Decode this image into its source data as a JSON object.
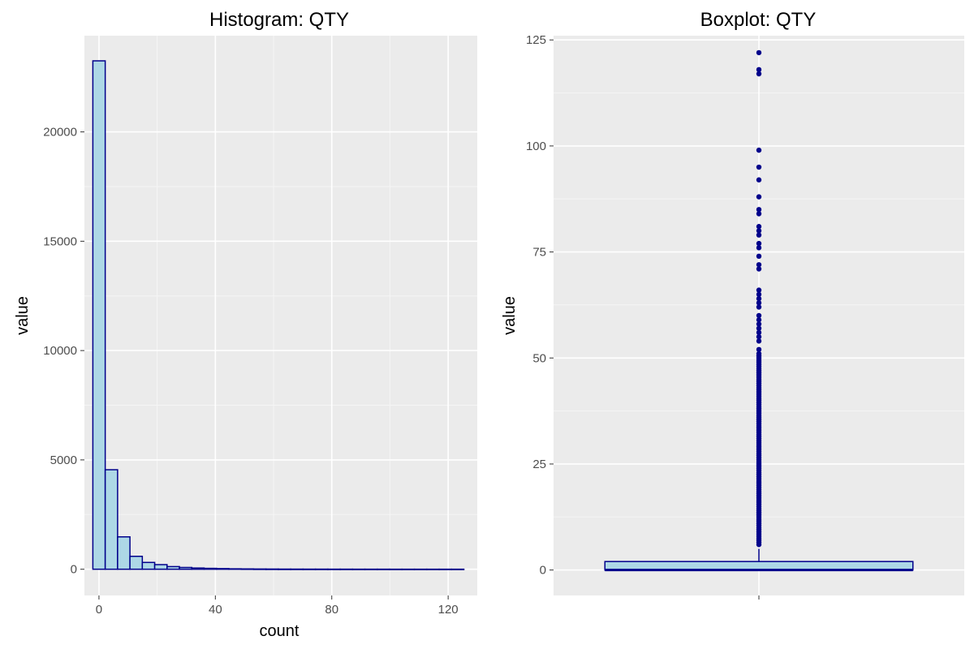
{
  "colors": {
    "panel_background": "#ebebeb",
    "grid_major": "#ffffff",
    "grid_minor": "#f5f5f5",
    "tick_mark": "#333333",
    "fill": "#add8e6",
    "outline": "#00008b",
    "outlier": "#00008b"
  },
  "chart_data": [
    {
      "type": "bar",
      "title": "Histogram: QTY",
      "xlabel": "count",
      "ylabel": "value",
      "orientation": "vertical-bars-histogram",
      "xlim": [
        -5,
        130
      ],
      "ylim": [
        -1200,
        24400
      ],
      "x_ticks": [
        0,
        40,
        80,
        120
      ],
      "x_tick_labels": [
        "0",
        "40",
        "80",
        "120"
      ],
      "y_ticks": [
        0,
        5000,
        10000,
        15000,
        20000
      ],
      "y_tick_labels": [
        "0",
        "5000",
        "10000",
        "15000",
        "20000"
      ],
      "grid": true,
      "bin_width": 4.25,
      "bin_starts": [
        -2.1,
        2.15,
        6.4,
        10.65,
        14.9,
        19.15,
        23.4,
        27.65,
        31.9,
        36.15,
        40.4,
        44.65,
        48.9,
        53.15,
        57.4,
        61.65,
        65.9,
        70.15,
        74.4,
        78.65,
        82.9,
        87.15,
        91.4,
        95.65,
        99.9,
        104.15,
        108.4,
        112.65,
        116.9,
        121.15
      ],
      "values": [
        23250,
        4550,
        1480,
        590,
        310,
        210,
        120,
        80,
        55,
        40,
        28,
        18,
        14,
        10,
        8,
        6,
        5,
        4,
        4,
        3,
        3,
        2,
        2,
        2,
        1,
        1,
        1,
        1,
        1,
        1
      ]
    },
    {
      "type": "boxplot",
      "title": "Boxplot: QTY",
      "xlabel": "",
      "ylabel": "value",
      "ylim": [
        -6,
        126
      ],
      "y_ticks": [
        0,
        25,
        50,
        75,
        100,
        125
      ],
      "y_tick_labels": [
        "0",
        "25",
        "50",
        "75",
        "100",
        "125"
      ],
      "grid": true,
      "box": {
        "min": 0,
        "q1": 0,
        "median": 0,
        "q3": 2,
        "whisker_high": 5
      },
      "outliers": [
        6,
        6.5,
        7,
        7.5,
        8,
        8.5,
        9,
        9.5,
        10,
        10.5,
        11,
        11.5,
        12,
        12.5,
        13,
        13.5,
        14,
        14.5,
        15,
        15.5,
        16,
        16.5,
        17,
        17.5,
        18,
        18.5,
        19,
        19.5,
        20,
        20.5,
        21,
        21.5,
        22,
        22.5,
        23,
        23.5,
        24,
        24.5,
        25,
        25.5,
        26,
        26.5,
        27,
        27.5,
        28,
        28.5,
        29,
        29.5,
        30,
        30.5,
        31,
        31.5,
        32,
        32.5,
        33,
        33.5,
        34,
        34.5,
        35,
        35.5,
        36,
        36.5,
        37,
        37.5,
        38,
        38.5,
        39,
        39.5,
        40,
        40.5,
        41,
        41.5,
        42,
        42.5,
        43,
        43.5,
        44,
        44.5,
        45,
        45.5,
        46,
        46.5,
        47,
        47.5,
        48,
        48.5,
        49,
        49.5,
        50,
        50.5,
        51,
        52,
        54,
        55,
        56,
        57,
        58,
        59,
        60,
        62,
        63,
        64,
        65,
        66,
        71,
        72,
        74,
        76,
        77,
        79,
        80,
        81,
        84,
        85,
        88,
        92,
        95,
        99,
        117,
        118,
        122
      ]
    }
  ]
}
